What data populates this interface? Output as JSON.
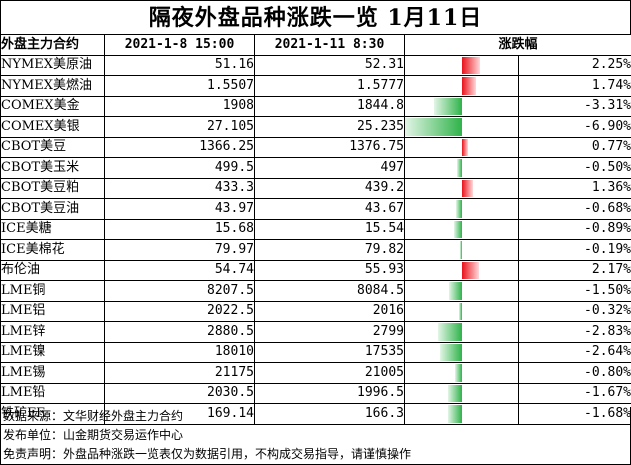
{
  "title": "隔夜外盘品种涨跌一览 1月11日",
  "header": {
    "name": "外盘主力合约",
    "prev": "2021-1-8 15:00",
    "curr": "2021-1-11 8:30",
    "change": "涨跌幅"
  },
  "rows": [
    {
      "name": "NYMEX美原油",
      "prev": "51.16",
      "curr": "52.31",
      "pct": "2.25%",
      "value": 2.25
    },
    {
      "name": "NYMEX美燃油",
      "prev": "1.5507",
      "curr": "1.5777",
      "pct": "1.74%",
      "value": 1.74
    },
    {
      "name": "COMEX美金",
      "prev": "1908",
      "curr": "1844.8",
      "pct": "-3.31%",
      "value": -3.31
    },
    {
      "name": "COMEX美银",
      "prev": "27.105",
      "curr": "25.235",
      "pct": "-6.90%",
      "value": -6.9
    },
    {
      "name": "CBOT美豆",
      "prev": "1366.25",
      "curr": "1376.75",
      "pct": "0.77%",
      "value": 0.77
    },
    {
      "name": "CBOT美玉米",
      "prev": "499.5",
      "curr": "497",
      "pct": "-0.50%",
      "value": -0.5
    },
    {
      "name": "CBOT美豆粕",
      "prev": "433.3",
      "curr": "439.2",
      "pct": "1.36%",
      "value": 1.36
    },
    {
      "name": "CBOT美豆油",
      "prev": "43.97",
      "curr": "43.67",
      "pct": "-0.68%",
      "value": -0.68
    },
    {
      "name": "ICE美糖",
      "prev": "15.68",
      "curr": "15.54",
      "pct": "-0.89%",
      "value": -0.89
    },
    {
      "name": "ICE美棉花",
      "prev": "79.97",
      "curr": "79.82",
      "pct": "-0.19%",
      "value": -0.19
    },
    {
      "name": "布伦油",
      "prev": "54.74",
      "curr": "55.93",
      "pct": "2.17%",
      "value": 2.17
    },
    {
      "name": "LME铜",
      "prev": "8207.5",
      "curr": "8084.5",
      "pct": "-1.50%",
      "value": -1.5
    },
    {
      "name": "LME铝",
      "prev": "2022.5",
      "curr": "2016",
      "pct": "-0.32%",
      "value": -0.32
    },
    {
      "name": "LME锌",
      "prev": "2880.5",
      "curr": "2799",
      "pct": "-2.83%",
      "value": -2.83
    },
    {
      "name": "LME镍",
      "prev": "18010",
      "curr": "17535",
      "pct": "-2.64%",
      "value": -2.64
    },
    {
      "name": "LME锡",
      "prev": "21175",
      "curr": "21005",
      "pct": "-0.80%",
      "value": -0.8
    },
    {
      "name": "LME铅",
      "prev": "2030.5",
      "curr": "1996.5",
      "pct": "-1.67%",
      "value": -1.67
    },
    {
      "name": "铁矿FE",
      "prev": "169.14",
      "curr": "166.3",
      "pct": "-1.68%",
      "value": -1.68
    }
  ],
  "notes": {
    "source": "数据来源：文华财经外盘主力合约",
    "publisher": "发布单位：山金期货交易运作中心",
    "disclaimer": "免责声明：外盘品种涨跌一览表仅为数据引用，不构成交易指导，请谨慎操作"
  },
  "colors": {
    "up": "#e8111a",
    "down": "#2fb34a"
  }
}
